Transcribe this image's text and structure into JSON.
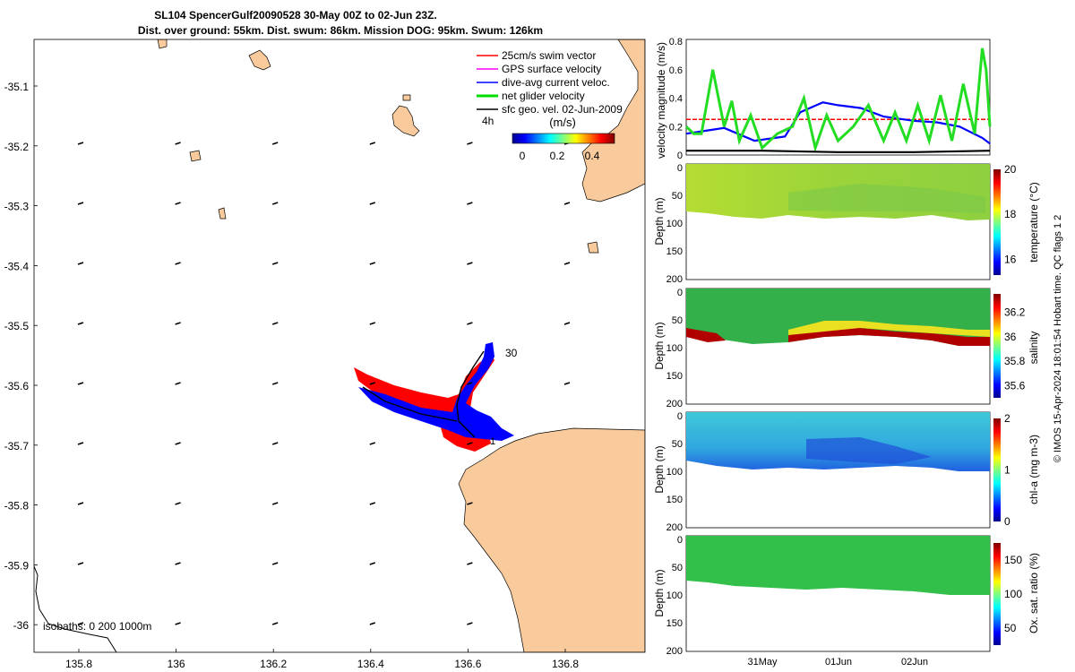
{
  "header": {
    "title_line1": "SL104 SpencerGulf20090528 30-May 00Z to 02-Jun 23Z.",
    "title_line2": "Dist. over ground: 55km. Dist. swum: 86km. Mission DOG: 95km. Swum: 126km"
  },
  "map": {
    "lat_ticks": [
      "-35.1",
      "-35.2",
      "-35.3",
      "-35.4",
      "-35.5",
      "-35.6",
      "-35.7",
      "-35.8",
      "-35.9",
      "-36"
    ],
    "lon_ticks": [
      "135.8",
      "136",
      "136.2",
      "136.4",
      "136.6",
      "136.8"
    ],
    "legend": [
      {
        "label": "25cm/s swim vector",
        "color": "#ff0000"
      },
      {
        "label": "GPS surface velocity",
        "color": "#ff00ff"
      },
      {
        "label": "dive-avg current veloc.",
        "color": "#0000ff"
      },
      {
        "label": "net glider velocity",
        "color": "#00dd00"
      },
      {
        "label": "sfc geo. vel. 02-Jun-2009",
        "color": "#000000"
      }
    ],
    "interval_label": "4h",
    "colorbar_unit": "(m/s)",
    "colorbar_ticks": [
      "0",
      "0.2",
      "0.4"
    ],
    "track_labels": {
      "start": "1",
      "end": "30"
    },
    "isobaths_label": "isobaths: 0   200  1000m",
    "land_color": "#f9cb9c"
  },
  "chart_data": [
    {
      "type": "line",
      "title": "",
      "ylabel": "velocity magnitude (m/s)",
      "ylim": [
        0,
        0.8
      ],
      "y_ticks": [
        "0",
        "0.2",
        "0.4",
        "0.6",
        "0.8"
      ],
      "x_range_days": [
        0,
        4
      ],
      "series": [
        {
          "name": "25cm/s swim vector",
          "color": "#ff0000",
          "x": [
            0,
            4
          ],
          "values": [
            0.25,
            0.25
          ]
        },
        {
          "name": "dive-avg current veloc.",
          "color": "#0000ff",
          "x": [
            0,
            0.25,
            0.5,
            0.9,
            1.3,
            1.5,
            1.8,
            2.0,
            2.3,
            2.6,
            3.0,
            3.3,
            3.6,
            3.9,
            4.0
          ],
          "values": [
            0.15,
            0.17,
            0.19,
            0.1,
            0.13,
            0.3,
            0.37,
            0.35,
            0.33,
            0.27,
            0.24,
            0.23,
            0.2,
            0.12,
            0.08
          ]
        },
        {
          "name": "net glider velocity",
          "color": "#22dd22",
          "x": [
            0,
            0.1,
            0.2,
            0.35,
            0.5,
            0.6,
            0.7,
            0.85,
            1.0,
            1.2,
            1.4,
            1.55,
            1.7,
            1.85,
            2.0,
            2.2,
            2.4,
            2.6,
            2.75,
            2.9,
            3.05,
            3.2,
            3.35,
            3.5,
            3.65,
            3.8,
            3.9,
            3.95,
            4.0
          ],
          "values": [
            0.2,
            0.15,
            0.15,
            0.6,
            0.2,
            0.38,
            0.1,
            0.28,
            0.05,
            0.15,
            0.2,
            0.4,
            0.05,
            0.28,
            0.1,
            0.2,
            0.35,
            0.1,
            0.3,
            0.1,
            0.35,
            0.1,
            0.42,
            0.1,
            0.5,
            0.15,
            0.75,
            0.6,
            0.2
          ]
        },
        {
          "name": "sfc geo. vel.",
          "color": "#000000",
          "x": [
            0,
            1,
            2,
            3,
            4
          ],
          "values": [
            0.03,
            0.03,
            0.02,
            0.02,
            0.03
          ]
        }
      ]
    },
    {
      "type": "heatmap",
      "ylabel": "Depth (m)",
      "colorbar_label": "temperature (°C)",
      "y_ticks": [
        "0",
        "50",
        "100",
        "150",
        "200"
      ],
      "colorbar_ticks": [
        "16",
        "18",
        "20"
      ],
      "colorbar_range": [
        15.3,
        20
      ]
    },
    {
      "type": "heatmap",
      "ylabel": "Depth (m)",
      "colorbar_label": "salinity",
      "y_ticks": [
        "0",
        "50",
        "100",
        "150",
        "200"
      ],
      "colorbar_ticks": [
        "35.6",
        "35.8",
        "36",
        "36.2"
      ],
      "colorbar_range": [
        35.5,
        36.35
      ]
    },
    {
      "type": "heatmap",
      "ylabel": "Depth (m)",
      "colorbar_label": "chl-a (mg m-3)",
      "y_ticks": [
        "0",
        "50",
        "100",
        "150",
        "200"
      ],
      "colorbar_ticks": [
        "0",
        "1",
        "2"
      ],
      "colorbar_range": [
        0,
        2
      ]
    },
    {
      "type": "heatmap",
      "ylabel": "Depth (m)",
      "colorbar_label": "Ox. sat. ratio (%)",
      "y_ticks": [
        "0",
        "50",
        "100",
        "150",
        "200"
      ],
      "colorbar_ticks": [
        "50",
        "100",
        "150"
      ],
      "colorbar_range": [
        25,
        175
      ],
      "x_tick_labels": [
        "31May",
        "01Jun",
        "02Jun"
      ]
    }
  ],
  "footer_vertical": "© IMOS 15-Apr-2024 18:01:54 Hobart time. QC flags 1  2"
}
